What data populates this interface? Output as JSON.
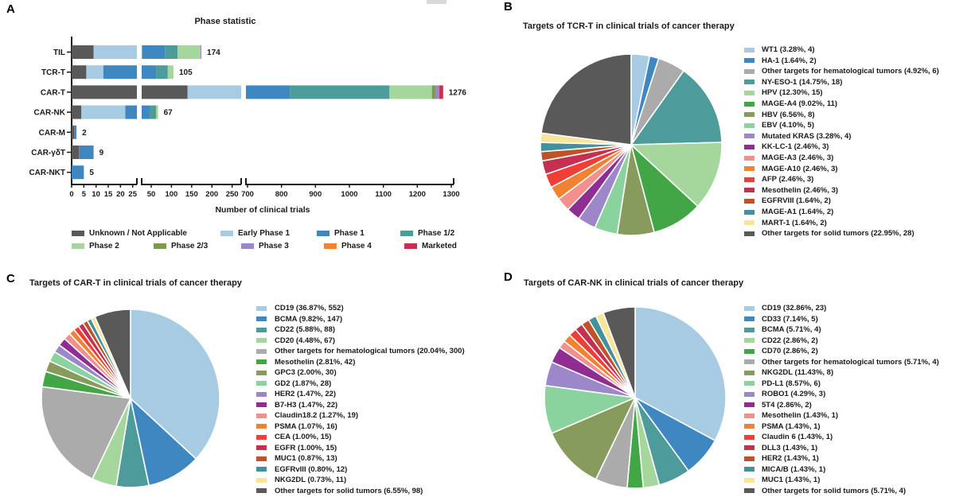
{
  "panels": {
    "a": {
      "letter": "A"
    },
    "b": {
      "letter": "B"
    },
    "c": {
      "letter": "C"
    },
    "d": {
      "letter": "D"
    }
  },
  "palette": {
    "lightblue": "#A6CBE3",
    "blue": "#3F87C1",
    "gray": "#ABABAB",
    "teal": "#4E9B9B",
    "lightgreen": "#A5D69C",
    "green": "#42A647",
    "olive": "#879B5C",
    "mint": "#8BD39E",
    "lightpurple": "#9C87C9",
    "purple": "#8F2D92",
    "salmon": "#F2908D",
    "orange": "#F08232",
    "red": "#EF3E36",
    "crimson": "#C52F50",
    "brick": "#BF5229",
    "teal2": "#43919B",
    "yellow": "#FAE49A",
    "darkgray": "#595959"
  },
  "chart_data": [
    {
      "panel": "A",
      "type": "bar",
      "title": "Phase statistic",
      "xlabel": "Number of clinical trials",
      "orientation": "horizontal-stacked",
      "axis_breaks": [
        [
          0,
          25
        ],
        [
          50,
          250
        ],
        [
          700,
          1300
        ]
      ],
      "tick_labels": [
        [
          0,
          5,
          10,
          15,
          20,
          25
        ],
        [
          50,
          100,
          150,
          200,
          250
        ],
        [
          700,
          800,
          900,
          1000,
          1100,
          1200,
          1300
        ]
      ],
      "phases": [
        {
          "name": "Unknown / Not Applicable",
          "color": "#595959"
        },
        {
          "name": "Early Phase 1",
          "color": "#A6CBE3"
        },
        {
          "name": "Phase 1",
          "color": "#3F87C1"
        },
        {
          "name": "Phase 1/2",
          "color": "#4E9B9B"
        },
        {
          "name": "Phase 2",
          "color": "#A5D69C"
        },
        {
          "name": "Phase 2/3",
          "color": "#7D9A55"
        },
        {
          "name": "Phase 3",
          "color": "#9C87C9"
        },
        {
          "name": "Phase 4",
          "color": "#F08232"
        },
        {
          "name": "Marketed",
          "color": "#C52F50"
        }
      ],
      "categories": [
        "TIL",
        "TCR-T",
        "CAR-T",
        "CAR-NK",
        "CAR-M",
        "CAR-γδT",
        "CAR-NKT"
      ],
      "totals": [
        174,
        105,
        1276,
        67,
        2,
        9,
        5
      ],
      "segments_note": "per-phase splits estimated from bar pixel lengths; totals are as labeled",
      "bars": [
        {
          "category": "TIL",
          "total": 174,
          "segments": [
            {
              "phase": "Unknown / Not Applicable",
              "value": 9
            },
            {
              "phase": "Early Phase 1",
              "value": 18
            },
            {
              "phase": "Phase 1",
              "value": 57
            },
            {
              "phase": "Phase 1/2",
              "value": 31
            },
            {
              "phase": "Phase 2",
              "value": 57
            },
            {
              "phase": "Phase 3",
              "value": 2
            }
          ]
        },
        {
          "category": "TCR-T",
          "total": 105,
          "segments": [
            {
              "phase": "Unknown / Not Applicable",
              "value": 6
            },
            {
              "phase": "Early Phase 1",
              "value": 7
            },
            {
              "phase": "Phase 1",
              "value": 49
            },
            {
              "phase": "Phase 1/2",
              "value": 29
            },
            {
              "phase": "Phase 2",
              "value": 14
            }
          ]
        },
        {
          "category": "CAR-T",
          "total": 1276,
          "segments": [
            {
              "phase": "Unknown / Not Applicable",
              "value": 140
            },
            {
              "phase": "Early Phase 1",
              "value": 420
            },
            {
              "phase": "Phase 1",
              "value": 265
            },
            {
              "phase": "Phase 1/2",
              "value": 293
            },
            {
              "phase": "Phase 2",
              "value": 125
            },
            {
              "phase": "Phase 2/3",
              "value": 12
            },
            {
              "phase": "Phase 3",
              "value": 10
            },
            {
              "phase": "Marketed",
              "value": 11
            }
          ]
        },
        {
          "category": "CAR-NK",
          "total": 67,
          "segments": [
            {
              "phase": "Unknown / Not Applicable",
              "value": 4
            },
            {
              "phase": "Early Phase 1",
              "value": 18
            },
            {
              "phase": "Phase 1",
              "value": 24
            },
            {
              "phase": "Phase 1/2",
              "value": 16
            },
            {
              "phase": "Phase 2",
              "value": 5
            }
          ]
        },
        {
          "category": "CAR-M",
          "total": 2,
          "segments": [
            {
              "phase": "Unknown / Not Applicable",
              "value": 1
            },
            {
              "phase": "Phase 1",
              "value": 1
            }
          ]
        },
        {
          "category": "CAR-γδT",
          "total": 9,
          "segments": [
            {
              "phase": "Unknown / Not Applicable",
              "value": 3
            },
            {
              "phase": "Phase 1",
              "value": 6
            }
          ]
        },
        {
          "category": "CAR-NKT",
          "total": 5,
          "segments": [
            {
              "phase": "Phase 1",
              "value": 5
            }
          ]
        }
      ]
    },
    {
      "panel": "B",
      "type": "pie",
      "title": "Targets of TCR-T in clinical trials of cancer therapy",
      "legend_position": "right",
      "slices": [
        {
          "label": "WT1",
          "pct": 3.28,
          "count": 4,
          "color": "#A6CBE3"
        },
        {
          "label": "HA-1",
          "pct": 1.64,
          "count": 2,
          "color": "#3F87C1"
        },
        {
          "label": "Other targets for hematological tumors",
          "pct": 4.92,
          "count": 6,
          "color": "#ABABAB"
        },
        {
          "label": "NY-ESO-1",
          "pct": 14.75,
          "count": 18,
          "color": "#4E9B9B"
        },
        {
          "label": "HPV",
          "pct": 12.3,
          "count": 15,
          "color": "#A5D69C"
        },
        {
          "label": "MAGE-A4",
          "pct": 9.02,
          "count": 11,
          "color": "#42A647"
        },
        {
          "label": "HBV",
          "pct": 6.56,
          "count": 8,
          "color": "#879B5C"
        },
        {
          "label": "EBV",
          "pct": 4.1,
          "count": 5,
          "color": "#8BD39E"
        },
        {
          "label": "Mutated KRAS",
          "pct": 3.28,
          "count": 4,
          "color": "#9C87C9"
        },
        {
          "label": "KK-LC-1",
          "pct": 2.46,
          "count": 3,
          "color": "#8F2D92"
        },
        {
          "label": "MAGE-A3",
          "pct": 2.46,
          "count": 3,
          "color": "#F2908D"
        },
        {
          "label": "MAGE-A10",
          "pct": 2.46,
          "count": 3,
          "color": "#F08232"
        },
        {
          "label": "AFP",
          "pct": 2.46,
          "count": 3,
          "color": "#EF3E36"
        },
        {
          "label": "Mesothelin",
          "pct": 2.46,
          "count": 3,
          "color": "#C52F50"
        },
        {
          "label": "EGFRVIII",
          "pct": 1.64,
          "count": 2,
          "color": "#BF5229"
        },
        {
          "label": "MAGE-A1",
          "pct": 1.64,
          "count": 2,
          "color": "#43919B"
        },
        {
          "label": "MART-1",
          "pct": 1.64,
          "count": 2,
          "color": "#FAE49A"
        },
        {
          "label": "Other targets for solid tumors",
          "pct": 22.95,
          "count": 28,
          "color": "#595959"
        }
      ]
    },
    {
      "panel": "C",
      "type": "pie",
      "title": "Targets of CAR-T in clinical trials of cancer therapy",
      "legend_position": "right",
      "slices": [
        {
          "label": "CD19",
          "pct": 36.87,
          "count": 552,
          "color": "#A6CBE3"
        },
        {
          "label": "BCMA",
          "pct": 9.82,
          "count": 147,
          "color": "#3F87C1"
        },
        {
          "label": "CD22",
          "pct": 5.88,
          "count": 88,
          "color": "#4E9B9B"
        },
        {
          "label": "CD20",
          "pct": 4.48,
          "count": 67,
          "color": "#A5D69C"
        },
        {
          "label": "Other targets for hematological tumors",
          "pct": 20.04,
          "count": 300,
          "color": "#ABABAB"
        },
        {
          "label": "Mesothelin",
          "pct": 2.81,
          "count": 42,
          "color": "#42A647"
        },
        {
          "label": "GPC3",
          "pct": 2.0,
          "count": 30,
          "color": "#879B5C"
        },
        {
          "label": "GD2",
          "pct": 1.87,
          "count": 28,
          "color": "#8BD39E"
        },
        {
          "label": "HER2",
          "pct": 1.47,
          "count": 22,
          "color": "#9C87C9"
        },
        {
          "label": "B7-H3",
          "pct": 1.47,
          "count": 22,
          "color": "#8F2D92"
        },
        {
          "label": "Claudin18.2",
          "pct": 1.27,
          "count": 19,
          "color": "#F2908D"
        },
        {
          "label": "PSMA",
          "pct": 1.07,
          "count": 16,
          "color": "#F08232"
        },
        {
          "label": "CEA",
          "pct": 1.0,
          "count": 15,
          "color": "#EF3E36"
        },
        {
          "label": "EGFR",
          "pct": 1.0,
          "count": 15,
          "color": "#C52F50"
        },
        {
          "label": "MUC1",
          "pct": 0.87,
          "count": 13,
          "color": "#BF5229"
        },
        {
          "label": "EGFRvIII",
          "pct": 0.8,
          "count": 12,
          "color": "#43919B"
        },
        {
          "label": "NKG2DL",
          "pct": 0.73,
          "count": 11,
          "color": "#FAE49A"
        },
        {
          "label": "Other targets for solid tumors",
          "pct": 6.55,
          "count": 98,
          "color": "#595959"
        }
      ]
    },
    {
      "panel": "D",
      "type": "pie",
      "title": "Targets of CAR-NK in clinical trials of cancer therapy",
      "legend_position": "right",
      "slices": [
        {
          "label": "CD19",
          "pct": 32.86,
          "count": 23,
          "color": "#A6CBE3"
        },
        {
          "label": "CD33",
          "pct": 7.14,
          "count": 5,
          "color": "#3F87C1"
        },
        {
          "label": "BCMA",
          "pct": 5.71,
          "count": 4,
          "color": "#4E9B9B"
        },
        {
          "label": "CD22",
          "pct": 2.86,
          "count": 2,
          "color": "#A5D69C"
        },
        {
          "label": "CD70",
          "pct": 2.86,
          "count": 2,
          "color": "#42A647"
        },
        {
          "label": "Other targets for hematological tumors",
          "pct": 5.71,
          "count": 4,
          "color": "#ABABAB"
        },
        {
          "label": "NKG2DL",
          "pct": 11.43,
          "count": 8,
          "color": "#879B5C"
        },
        {
          "label": "PD-L1",
          "pct": 8.57,
          "count": 6,
          "color": "#8BD39E"
        },
        {
          "label": "ROBO1",
          "pct": 4.29,
          "count": 3,
          "color": "#9C87C9"
        },
        {
          "label": "5T4",
          "pct": 2.86,
          "count": 2,
          "color": "#8F2D92"
        },
        {
          "label": "Mesothelin",
          "pct": 1.43,
          "count": 1,
          "color": "#F2908D"
        },
        {
          "label": "PSMA",
          "pct": 1.43,
          "count": 1,
          "color": "#F08232"
        },
        {
          "label": "Claudin 6",
          "pct": 1.43,
          "count": 1,
          "color": "#EF3E36"
        },
        {
          "label": "DLL3",
          "pct": 1.43,
          "count": 1,
          "color": "#C52F50"
        },
        {
          "label": "HER2",
          "pct": 1.43,
          "count": 1,
          "color": "#BF5229"
        },
        {
          "label": "MICA/B",
          "pct": 1.43,
          "count": 1,
          "color": "#43919B"
        },
        {
          "label": "MUC1",
          "pct": 1.43,
          "count": 1,
          "color": "#FAE49A"
        },
        {
          "label": "Other targets for solid tumors",
          "pct": 5.71,
          "count": 4,
          "color": "#595959"
        }
      ]
    }
  ]
}
